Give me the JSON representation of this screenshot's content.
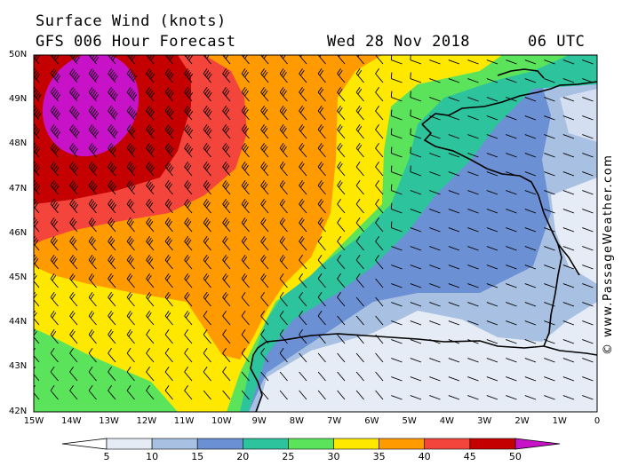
{
  "header": {
    "title": "Surface Wind (knots)",
    "model": "GFS 006 Hour Forecast",
    "date": "Wed 28 Nov 2018",
    "time": "06 UTC"
  },
  "credit": "© www.PassageWeather.com",
  "axes": {
    "lat_labels": [
      "50N",
      "49N",
      "48N",
      "47N",
      "46N",
      "45N",
      "44N",
      "43N",
      "42N"
    ],
    "lon_labels": [
      "15W",
      "14W",
      "13W",
      "12W",
      "11W",
      "10W",
      "9W",
      "8W",
      "7W",
      "6W",
      "5W",
      "4W",
      "3W",
      "2W",
      "1W",
      "0"
    ]
  },
  "colorbar": {
    "labels": [
      "5",
      "10",
      "15",
      "20",
      "25",
      "30",
      "35",
      "40",
      "45",
      "50"
    ],
    "colors": [
      "#e6ecf6",
      "#a8c0e2",
      "#6c90d4",
      "#2cc39d",
      "#5ce35c",
      "#ffe800",
      "#ff9a00",
      "#f4453c",
      "#c40000",
      "#c812c8"
    ],
    "below_color": "#ffffff"
  },
  "map": {
    "region": "Bay of Biscay",
    "background_color": "#6c90d4",
    "land_outline_color": "#000000"
  }
}
